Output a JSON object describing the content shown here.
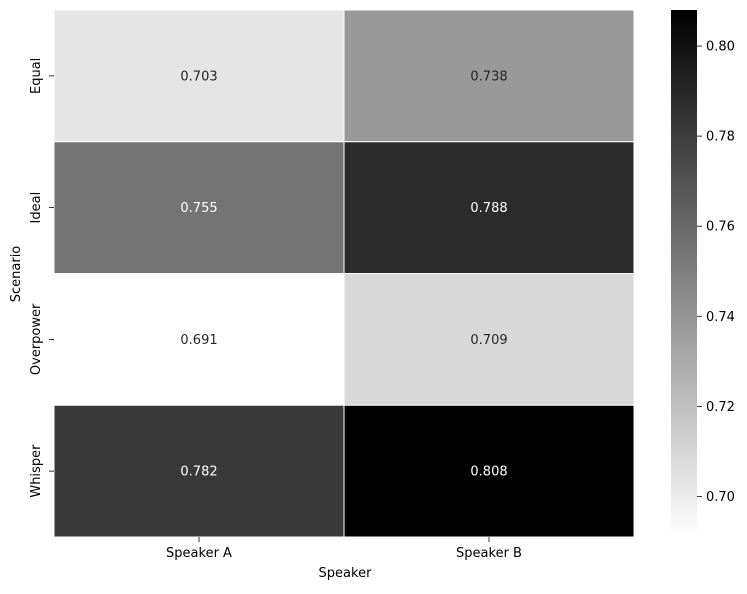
{
  "chart_data": {
    "type": "heatmap",
    "x_categories": [
      "Speaker A",
      "Speaker B"
    ],
    "y_categories": [
      "Equal",
      "Ideal",
      "Overpower",
      "Whisper"
    ],
    "values": [
      [
        0.703,
        0.738
      ],
      [
        0.755,
        0.788
      ],
      [
        0.691,
        0.709
      ],
      [
        0.782,
        0.808
      ]
    ],
    "value_labels": [
      [
        "0.703",
        "0.738"
      ],
      [
        "0.755",
        "0.788"
      ],
      [
        "0.691",
        "0.709"
      ],
      [
        "0.782",
        "0.808"
      ]
    ],
    "xlabel": "Speaker",
    "ylabel": "Scenario",
    "title": "",
    "colormap": "Greys",
    "colorbar": {
      "min": 0.691,
      "max": 0.808,
      "ticks": [
        0.7,
        0.72,
        0.74,
        0.76,
        0.78,
        0.8
      ],
      "tick_labels": [
        "0.70",
        "0.72",
        "0.74",
        "0.76",
        "0.78",
        "0.80"
      ]
    },
    "grid": false,
    "legend": "colorbar-right"
  },
  "colors": {
    "low": "#ffffff",
    "high": "#000000",
    "text_dark": "#262626",
    "text_light": "#ffffff",
    "axis": "#000000"
  }
}
